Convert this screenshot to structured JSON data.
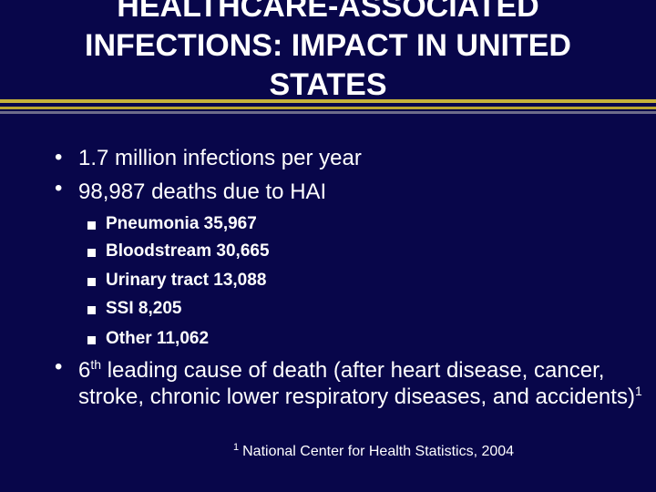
{
  "title": {
    "line1": "HEALTHCARE-ASSOCIATED",
    "line2": "INFECTIONS: IMPACT IN UNITED",
    "line3": "STATES"
  },
  "bullets": [
    {
      "marker": "•",
      "text": "1.7 million infections per year"
    },
    {
      "marker": "•",
      "text": "98,987 deaths due to HAI"
    }
  ],
  "sub_bullets": [
    "Pneumonia 35,967",
    "Bloodstream 30,665",
    "Urinary tract 13,088",
    "SSI 8,205",
    "Other 11,062"
  ],
  "bullet3": {
    "marker": "•",
    "number": "6",
    "suffix": "th",
    "text": " leading cause of death (after heart disease, cancer, stroke, chronic lower respiratory diseases, and accidents)",
    "ref": "1"
  },
  "footnote": {
    "ref": "1",
    "text": "National Center for Health Statistics, 2004"
  },
  "colors": {
    "background": "#08064a",
    "rule_gold": "#c7b23a",
    "rule_grey": "#6e6c8a",
    "text": "#ffffff"
  }
}
